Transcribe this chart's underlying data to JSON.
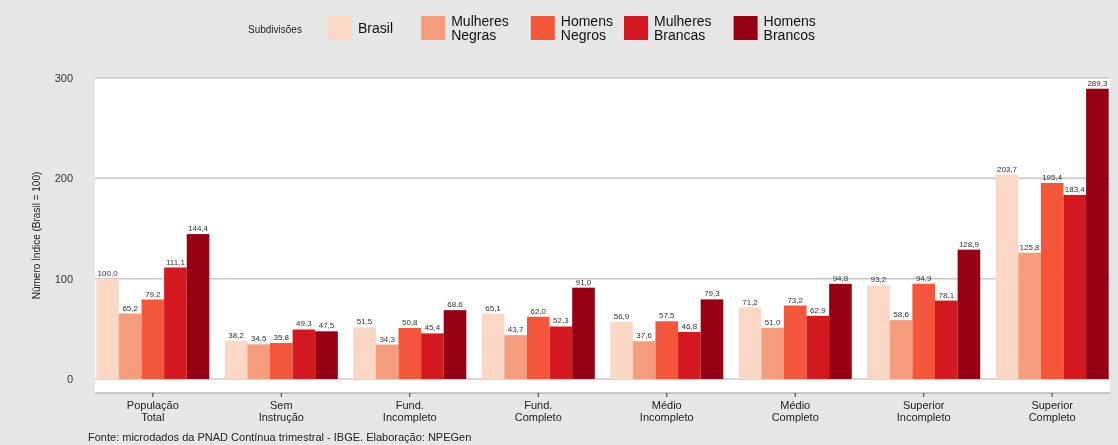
{
  "chart_data": {
    "type": "bar",
    "ylabel": "Número Índice (Brasil = 100)",
    "legend_title": "Subdivisões",
    "legend": "top",
    "grid": "y",
    "categories": [
      "População Total",
      "Sem Instrução",
      "Fund. Incompleto",
      "Fund. Completo",
      "Médio Incompleto",
      "Médio Completo",
      "Superior Incompleto",
      "Superior Completo"
    ],
    "ylim": [
      -14,
      300
    ],
    "yticks": [
      0,
      100,
      200,
      300
    ],
    "series": [
      {
        "name": "Brasil",
        "color": "#fbd7c6",
        "values": [
          100.0,
          38.2,
          51.5,
          65.1,
          56.9,
          71.2,
          93.2,
          203.7
        ],
        "value_labels": [
          "100,0",
          "38,2",
          "51,5",
          "65,1",
          "56,9",
          "71,2",
          "93,2",
          "203,7"
        ]
      },
      {
        "name": "Mulheres Negras",
        "color": "#f59c7c",
        "values": [
          65.2,
          34.5,
          34.3,
          43.7,
          37.6,
          51.0,
          58.6,
          125.8
        ],
        "value_labels": [
          "65,2",
          "34,5",
          "34,3",
          "43,7",
          "37,6",
          "51,0",
          "58,6",
          "125,8"
        ]
      },
      {
        "name": "Homens Negros",
        "color": "#f3563b",
        "values": [
          79.2,
          35.8,
          50.8,
          62.0,
          57.5,
          73.2,
          94.9,
          195.4
        ],
        "value_labels": [
          "79,2",
          "35,8",
          "50,8",
          "62,0",
          "57,5",
          "73,2",
          "94,9",
          "195,4"
        ]
      },
      {
        "name": "Mulheres Brancas",
        "color": "#d3191f",
        "values": [
          111.1,
          49.3,
          45.4,
          52.3,
          46.8,
          62.9,
          78.1,
          183.4
        ],
        "value_labels": [
          "111,1",
          "49,3",
          "45,4",
          "52,3",
          "46,8",
          "62,9",
          "78,1",
          "183,4"
        ]
      },
      {
        "name": "Homens Brancos",
        "color": "#970014",
        "values": [
          144.4,
          47.5,
          68.6,
          91.0,
          79.3,
          94.8,
          128.9,
          289.3
        ],
        "value_labels": [
          "144,4",
          "47,5",
          "68,6",
          "91,0",
          "79,3",
          "94,8",
          "128,9",
          "289,3"
        ]
      }
    ],
    "annotations": [
      "Fonte: microdados da PNAD Contínua trimestral - IBGE. Elaboração: NPEGen"
    ]
  }
}
